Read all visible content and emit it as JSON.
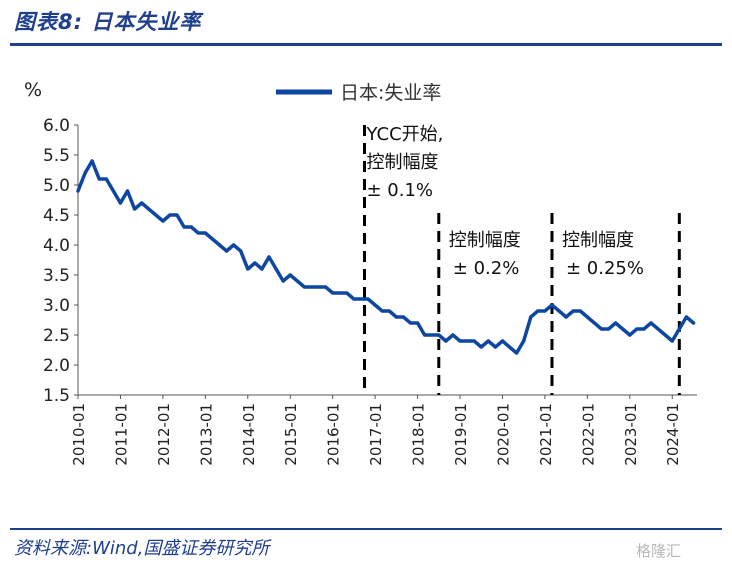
{
  "header": {
    "title": "图表8:  日本失业率"
  },
  "footer": {
    "source": "资料来源:Wind,国盛证券研究所",
    "watermark": "格隆汇"
  },
  "colors": {
    "accent": "#1f3f8f",
    "series": "#0d47a1"
  },
  "chart_data": {
    "type": "line",
    "title": "",
    "ylabel": "%",
    "xlabel": "",
    "ylim": [
      1.5,
      6.0
    ],
    "yticks": [
      "6.0",
      "5.5",
      "5.0",
      "4.5",
      "4.0",
      "3.5",
      "3.0",
      "2.5",
      "2.0",
      "1.5"
    ],
    "xticks": [
      "2010-01",
      "2011-01",
      "2012-01",
      "2013-01",
      "2014-01",
      "2015-01",
      "2016-01",
      "2017-01",
      "2018-01",
      "2019-01",
      "2020-01",
      "2021-01",
      "2022-01",
      "2023-01",
      "2024-01"
    ],
    "legend": "top",
    "grid": false,
    "series": [
      {
        "name": "日本:失业率",
        "x": [
          "2010-01",
          "2010-03",
          "2010-05",
          "2010-07",
          "2010-09",
          "2010-11",
          "2011-01",
          "2011-03",
          "2011-05",
          "2011-07",
          "2011-09",
          "2011-11",
          "2012-01",
          "2012-03",
          "2012-05",
          "2012-07",
          "2012-09",
          "2012-11",
          "2013-01",
          "2013-03",
          "2013-05",
          "2013-07",
          "2013-09",
          "2013-11",
          "2014-01",
          "2014-03",
          "2014-05",
          "2014-07",
          "2014-09",
          "2014-11",
          "2015-01",
          "2015-03",
          "2015-05",
          "2015-07",
          "2015-09",
          "2015-11",
          "2016-01",
          "2016-03",
          "2016-05",
          "2016-07",
          "2016-09",
          "2016-11",
          "2017-01",
          "2017-03",
          "2017-05",
          "2017-07",
          "2017-09",
          "2017-11",
          "2018-01",
          "2018-03",
          "2018-05",
          "2018-07",
          "2018-09",
          "2018-11",
          "2019-01",
          "2019-03",
          "2019-05",
          "2019-07",
          "2019-09",
          "2019-11",
          "2020-01",
          "2020-03",
          "2020-05",
          "2020-07",
          "2020-09",
          "2020-11",
          "2021-01",
          "2021-03",
          "2021-05",
          "2021-07",
          "2021-09",
          "2021-11",
          "2022-01",
          "2022-03",
          "2022-05",
          "2022-07",
          "2022-09",
          "2022-11",
          "2023-01",
          "2023-03",
          "2023-05",
          "2023-07",
          "2023-09",
          "2023-11",
          "2024-01",
          "2024-03",
          "2024-05",
          "2024-07"
        ],
        "values": [
          4.9,
          5.2,
          5.4,
          5.1,
          5.1,
          4.9,
          4.7,
          4.9,
          4.6,
          4.7,
          4.6,
          4.5,
          4.4,
          4.5,
          4.5,
          4.3,
          4.3,
          4.2,
          4.2,
          4.1,
          4.0,
          3.9,
          4.0,
          3.9,
          3.6,
          3.7,
          3.6,
          3.8,
          3.6,
          3.4,
          3.5,
          3.4,
          3.3,
          3.3,
          3.3,
          3.3,
          3.2,
          3.2,
          3.2,
          3.1,
          3.1,
          3.1,
          3.0,
          2.9,
          2.9,
          2.8,
          2.8,
          2.7,
          2.7,
          2.5,
          2.5,
          2.5,
          2.4,
          2.5,
          2.4,
          2.4,
          2.4,
          2.3,
          2.4,
          2.3,
          2.4,
          2.3,
          2.2,
          2.4,
          2.8,
          2.9,
          2.9,
          3.0,
          2.9,
          2.8,
          2.9,
          2.9,
          2.8,
          2.7,
          2.6,
          2.6,
          2.7,
          2.6,
          2.5,
          2.6,
          2.6,
          2.7,
          2.6,
          2.5,
          2.4,
          2.6,
          2.8,
          2.7
        ]
      }
    ],
    "annotations": [
      {
        "x": "2016-10",
        "label_lines": [
          "YCC开始,",
          "控制幅度",
          "± 0.1%"
        ]
      },
      {
        "x": "2018-07",
        "label_lines": [
          "控制幅度",
          "± 0.2%"
        ]
      },
      {
        "x": "2021-03",
        "label_lines": [
          "控制幅度",
          "± 0.25%"
        ]
      },
      {
        "x": "2024-03",
        "label_lines": []
      }
    ]
  }
}
